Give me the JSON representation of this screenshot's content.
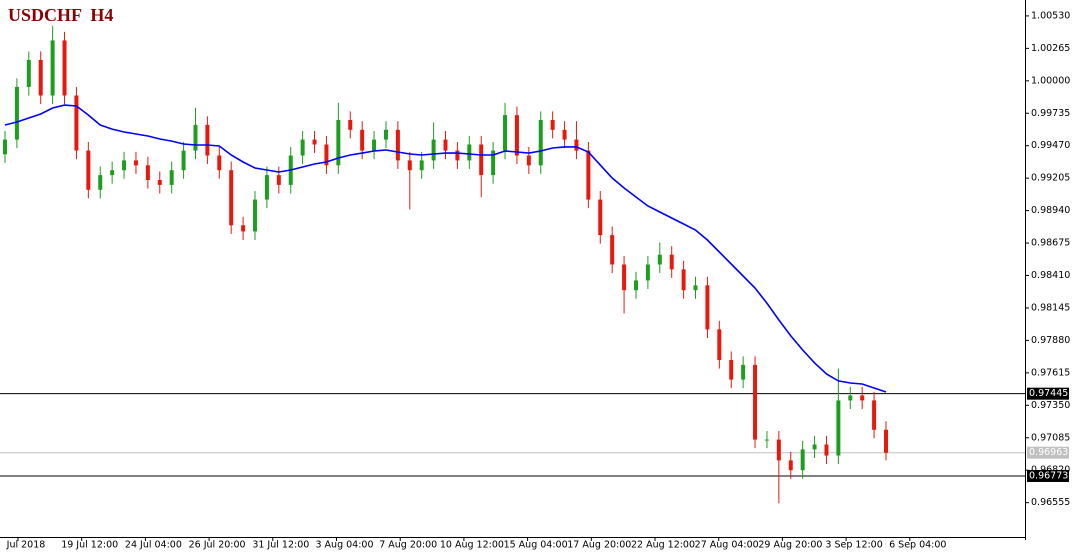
{
  "chart_data": {
    "type": "candlestick",
    "title": "USDCHF  H4",
    "ylim": [
      0.9625,
      1.0066
    ],
    "yticks": [
      {
        "value": 1.0053,
        "label": "1.00530"
      },
      1.00265,
      {
        "value": 1.0,
        "label": "1.00000"
      },
      0.99735,
      {
        "value": 0.9947,
        "label": "0.99470"
      },
      0.99205,
      {
        "value": 0.9894,
        "label": "0.98940"
      },
      0.98675,
      {
        "value": 0.9841,
        "label": "0.98410"
      },
      0.98145,
      {
        "value": 0.9788,
        "label": "0.97880"
      },
      0.97615,
      {
        "value": 0.9735,
        "label": "0.97350"
      },
      0.97085,
      {
        "value": 0.9682,
        "label": "0.96820"
      },
      0.96555
    ],
    "time_labels": [
      "Jul 2018",
      "19 Jul 12:00",
      "24 Jul 04:00",
      "26 Jul 20:00",
      "31 Jul 12:00",
      "3 Aug 04:00",
      "7 Aug 20:00",
      "10 Aug 12:00",
      "15 Aug 04:00",
      "17 Aug 20:00",
      "22 Aug 12:00",
      "27 Aug 04:00",
      "29 Aug 20:00",
      "3 Sep 12:00",
      "6 Sep 04:00"
    ],
    "up_color": "#1e9e1e",
    "down_color": "#e8190c",
    "open": [
      0.994,
      0.9952,
      0.9995,
      1.0017,
      0.9988,
      1.0033,
      0.9988,
      0.9943,
      0.9911,
      0.9923,
      0.9927,
      0.9935,
      0.9931,
      0.9919,
      0.9915,
      0.9927,
      0.9943,
      0.9964,
      0.9939,
      0.9927,
      0.9882,
      0.9877,
      0.9903,
      0.9923,
      0.9915,
      0.9939,
      0.9952,
      0.9948,
      0.9931,
      0.9968,
      0.996,
      0.9943,
      0.9952,
      0.996,
      0.9935,
      0.9927,
      0.9935,
      0.9952,
      0.9943,
      0.9935,
      0.9948,
      0.9923,
      0.9943,
      0.9972,
      0.9939,
      0.9931,
      0.9968,
      0.996,
      0.9952,
      0.9943,
      0.9903,
      0.9874,
      0.985,
      0.9829,
      0.9837,
      0.985,
      0.9858,
      0.9846,
      0.9829,
      0.9833,
      0.9797,
      0.9772,
      0.9756,
      0.9768,
      0.9707,
      0.9707,
      0.969,
      0.9682,
      0.9699,
      0.9703,
      0.9694,
      0.9739,
      0.9743,
      0.9739,
      0.9715
    ],
    "high": [
      0.9959,
      1.0002,
      1.0024,
      1.0024,
      1.0045,
      1.004,
      0.9995,
      0.995,
      0.993,
      0.9934,
      0.9942,
      0.9942,
      0.9938,
      0.9926,
      0.9934,
      0.995,
      0.9978,
      0.9971,
      0.9946,
      0.9934,
      0.9889,
      0.991,
      0.993,
      0.993,
      0.9946,
      0.9959,
      0.9959,
      0.9955,
      0.9982,
      0.9975,
      0.9967,
      0.9959,
      0.9967,
      0.9967,
      0.9942,
      0.9942,
      0.9966,
      0.9959,
      0.995,
      0.9955,
      0.9955,
      0.995,
      0.9982,
      0.9979,
      0.9946,
      0.9975,
      0.9975,
      0.9967,
      0.9967,
      0.995,
      0.991,
      0.9881,
      0.9857,
      0.9844,
      0.9857,
      0.9868,
      0.9865,
      0.9853,
      0.984,
      0.984,
      0.9804,
      0.9779,
      0.9775,
      0.9775,
      0.9714,
      0.9714,
      0.9697,
      0.9706,
      0.971,
      0.971,
      0.9765,
      0.975,
      0.975,
      0.9746,
      0.9722
    ],
    "low": [
      0.9933,
      0.9945,
      0.9988,
      0.9981,
      0.9981,
      0.9981,
      0.9936,
      0.9904,
      0.9904,
      0.9916,
      0.992,
      0.9924,
      0.9912,
      0.9908,
      0.9908,
      0.992,
      0.9936,
      0.9932,
      0.992,
      0.9875,
      0.987,
      0.987,
      0.9896,
      0.9908,
      0.9908,
      0.9932,
      0.9941,
      0.9924,
      0.9924,
      0.9953,
      0.9936,
      0.9936,
      0.9945,
      0.9928,
      0.9895,
      0.992,
      0.9928,
      0.9936,
      0.9928,
      0.9928,
      0.9905,
      0.9916,
      0.9936,
      0.9932,
      0.9924,
      0.9924,
      0.9953,
      0.9945,
      0.9936,
      0.9896,
      0.9867,
      0.9843,
      0.981,
      0.9822,
      0.983,
      0.9843,
      0.9839,
      0.9822,
      0.9822,
      0.979,
      0.9765,
      0.9749,
      0.9749,
      0.97,
      0.97,
      0.9655,
      0.9675,
      0.9675,
      0.9692,
      0.9687,
      0.9687,
      0.9732,
      0.9732,
      0.9708,
      0.969
    ],
    "close": [
      0.9952,
      0.9995,
      1.0017,
      0.9988,
      1.0033,
      0.9988,
      0.9943,
      0.9911,
      0.9923,
      0.9927,
      0.9935,
      0.9931,
      0.9919,
      0.9915,
      0.9927,
      0.9943,
      0.9964,
      0.9939,
      0.9927,
      0.9882,
      0.9877,
      0.9903,
      0.9923,
      0.9915,
      0.9939,
      0.9952,
      0.9948,
      0.9931,
      0.9968,
      0.996,
      0.9943,
      0.9952,
      0.996,
      0.9935,
      0.9927,
      0.9935,
      0.9952,
      0.9943,
      0.9935,
      0.9948,
      0.9923,
      0.9943,
      0.9972,
      0.9939,
      0.9931,
      0.9968,
      0.996,
      0.9952,
      0.9943,
      0.9903,
      0.9874,
      0.985,
      0.9829,
      0.9837,
      0.985,
      0.9858,
      0.9846,
      0.9829,
      0.9833,
      0.9797,
      0.9772,
      0.9756,
      0.9768,
      0.9707,
      0.9707,
      0.969,
      0.9682,
      0.9699,
      0.9703,
      0.9694,
      0.9739,
      0.9743,
      0.9739,
      0.9715,
      0.96963
    ],
    "ma": {
      "color": "#0000ff",
      "values": [
        0.99639,
        0.99664,
        0.99696,
        0.99729,
        0.99778,
        0.99802,
        0.99794,
        0.99721,
        0.99639,
        0.99606,
        0.99582,
        0.99566,
        0.99549,
        0.99525,
        0.99508,
        0.99484,
        0.99476,
        0.99476,
        0.99468,
        0.99394,
        0.99337,
        0.99288,
        0.99272,
        0.99255,
        0.99272,
        0.99296,
        0.99321,
        0.99337,
        0.9937,
        0.99394,
        0.9941,
        0.99427,
        0.99435,
        0.99419,
        0.99402,
        0.99394,
        0.99402,
        0.9941,
        0.9941,
        0.99402,
        0.99394,
        0.99394,
        0.99427,
        0.99419,
        0.9941,
        0.99427,
        0.99451,
        0.9946,
        0.9946,
        0.99419,
        0.99312,
        0.99206,
        0.99125,
        0.99051,
        0.98978,
        0.98929,
        0.9888,
        0.98831,
        0.98782,
        0.987,
        0.98602,
        0.98504,
        0.98406,
        0.98308,
        0.98185,
        0.98047,
        0.97917,
        0.97802,
        0.97696,
        0.97606,
        0.97549,
        0.97532,
        0.97524,
        0.97491,
        0.97459
      ]
    },
    "hlines": [
      {
        "value": 0.97445,
        "color": "#000000"
      },
      {
        "value": 0.96773,
        "color": "#000000"
      }
    ],
    "current_price": {
      "value": 0.96963,
      "color": "#c0c0c0"
    }
  }
}
